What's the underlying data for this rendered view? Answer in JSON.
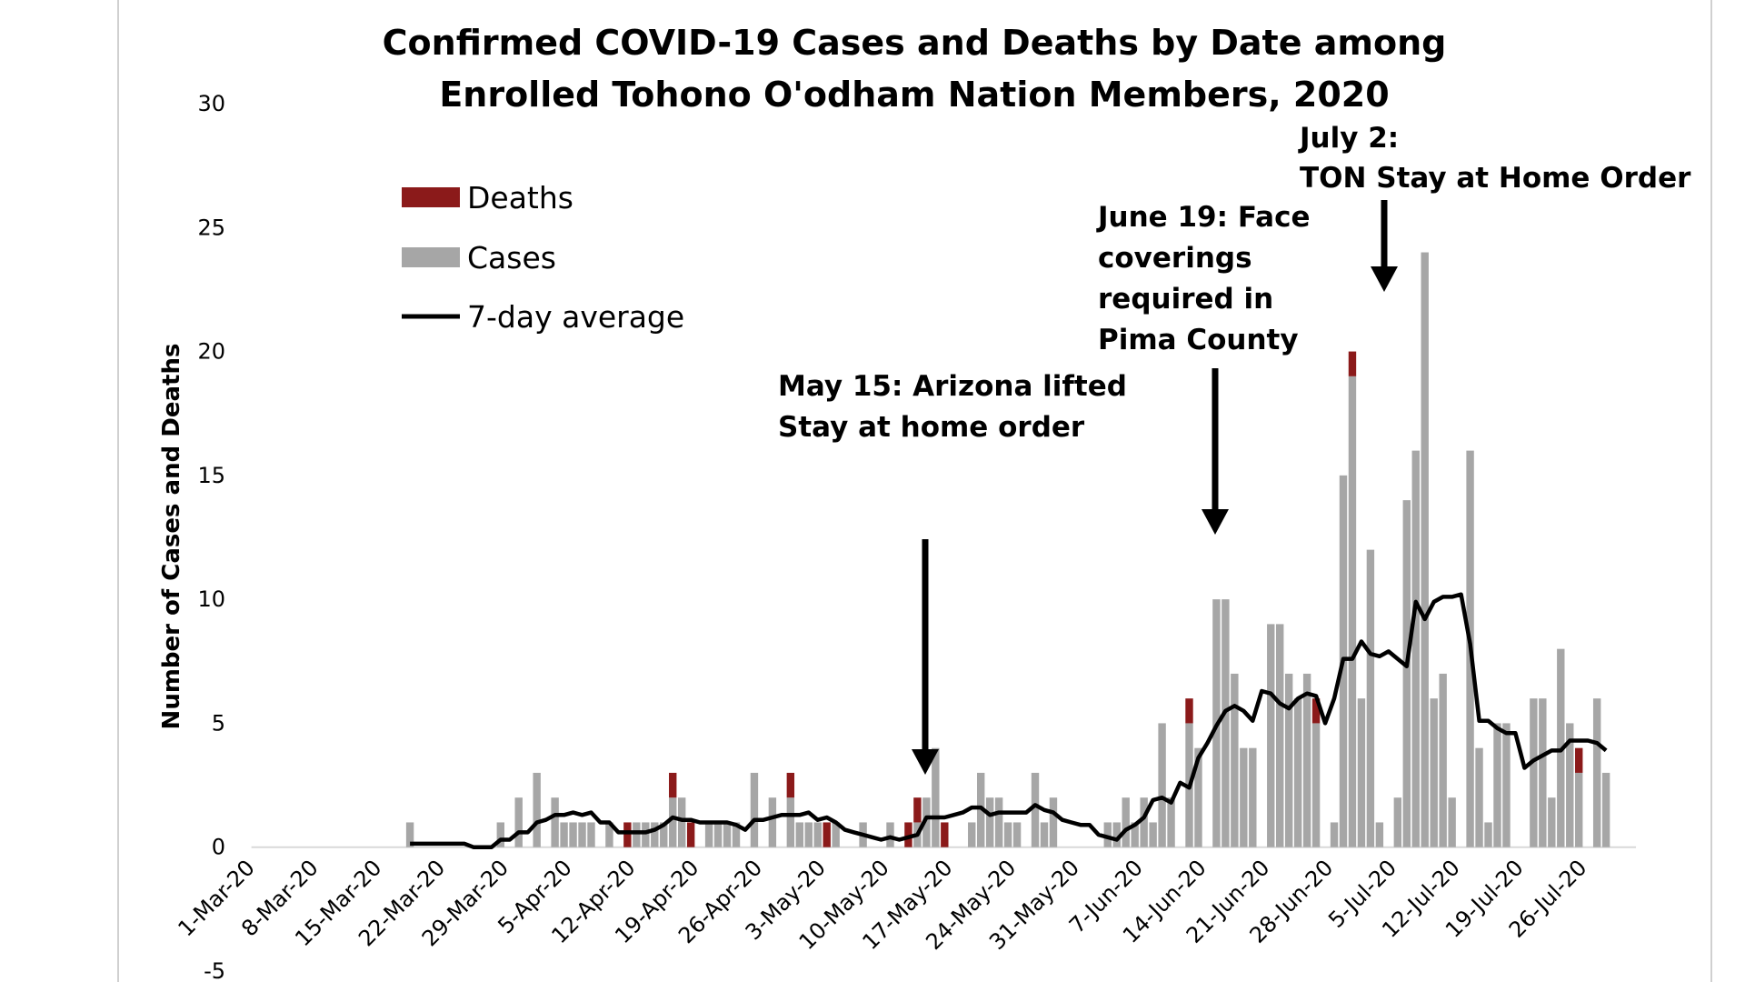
{
  "chart_data": {
    "type": "bar",
    "stacked": true,
    "title": [
      "Confirmed COVID-19 Cases and Deaths by Date among",
      "Enrolled Tohono O'odham Nation Members, 2020"
    ],
    "y_label": "Number of Cases and Deaths",
    "ylim": [
      -5,
      30
    ],
    "yticks": [
      -5,
      0,
      5,
      10,
      15,
      20,
      25,
      30
    ],
    "categories": [
      "1-Mar-20",
      null,
      null,
      null,
      null,
      null,
      null,
      "8-Mar-20",
      null,
      null,
      null,
      null,
      null,
      null,
      "15-Mar-20",
      null,
      null,
      null,
      null,
      null,
      null,
      "22-Mar-20",
      null,
      null,
      null,
      null,
      null,
      null,
      "29-Mar-20",
      null,
      null,
      null,
      null,
      null,
      null,
      "5-Apr-20",
      null,
      null,
      null,
      null,
      null,
      null,
      "12-Apr-20",
      null,
      null,
      null,
      null,
      null,
      null,
      "19-Apr-20",
      null,
      null,
      null,
      null,
      null,
      null,
      "26-Apr-20",
      null,
      null,
      null,
      null,
      null,
      null,
      "3-May-20",
      null,
      null,
      null,
      null,
      null,
      null,
      "10-May-20",
      null,
      null,
      null,
      null,
      null,
      null,
      "17-May-20",
      null,
      null,
      null,
      null,
      null,
      null,
      "24-May-20",
      null,
      null,
      null,
      null,
      null,
      null,
      "31-May-20",
      null,
      null,
      null,
      null,
      null,
      null,
      "7-Jun-20",
      null,
      null,
      null,
      null,
      null,
      null,
      "14-Jun-20",
      null,
      null,
      null,
      null,
      null,
      null,
      "21-Jun-20",
      null,
      null,
      null,
      null,
      null,
      null,
      "28-Jun-20",
      null,
      null,
      null,
      null,
      null,
      null,
      "5-Jul-20",
      null,
      null,
      null,
      null,
      null,
      null,
      "12-Jul-20",
      null,
      null,
      null,
      null,
      null,
      null,
      "19-Jul-20",
      null,
      null,
      null,
      null,
      null,
      null,
      "26-Jul-20",
      null,
      null,
      null,
      null
    ],
    "series": [
      {
        "name": "Deaths",
        "type": "bar",
        "color": "#8b1a1a",
        "values": [
          0,
          0,
          0,
          0,
          0,
          0,
          0,
          0,
          0,
          0,
          0,
          0,
          0,
          0,
          0,
          0,
          0,
          0,
          0,
          0,
          0,
          0,
          0,
          0,
          0,
          0,
          0,
          0,
          0,
          0,
          0,
          0,
          0,
          0,
          0,
          0,
          0,
          0,
          0,
          0,
          0,
          1,
          0,
          0,
          0,
          0,
          1,
          0,
          1,
          0,
          0,
          0,
          0,
          0,
          0,
          0,
          0,
          0,
          0,
          1,
          0,
          0,
          0,
          1,
          0,
          0,
          0,
          0,
          0,
          0,
          0,
          0,
          1,
          1,
          0,
          0,
          1,
          0,
          0,
          0,
          0,
          0,
          0,
          0,
          0,
          0,
          0,
          0,
          0,
          0,
          0,
          0,
          0,
          0,
          0,
          0,
          0,
          0,
          0,
          0,
          0,
          0,
          0,
          1,
          0,
          0,
          0,
          0,
          0,
          0,
          0,
          0,
          0,
          0,
          0,
          0,
          0,
          1,
          0,
          0,
          0,
          1,
          0,
          0,
          0,
          0,
          0,
          0,
          0,
          0,
          0,
          0,
          0,
          0,
          0,
          0,
          0,
          0,
          0,
          0,
          0,
          0,
          0,
          0,
          0,
          0,
          1,
          0,
          0,
          0,
          0,
          0
        ]
      },
      {
        "name": "Cases",
        "type": "bar",
        "color": "#a6a6a6",
        "values": [
          0,
          0,
          0,
          0,
          0,
          0,
          0,
          0,
          0,
          0,
          0,
          0,
          0,
          0,
          0,
          0,
          0,
          1,
          0,
          0,
          0,
          0,
          0,
          0,
          0,
          0,
          0,
          1,
          0,
          2,
          0,
          3,
          0,
          2,
          1,
          1,
          1,
          1,
          0,
          1,
          0,
          0,
          1,
          1,
          1,
          1,
          2,
          2,
          0,
          0,
          1,
          1,
          1,
          1,
          0,
          3,
          0,
          2,
          0,
          2,
          1,
          1,
          1,
          0,
          1,
          0,
          0,
          1,
          0,
          0,
          1,
          0,
          0,
          1,
          2,
          4,
          0,
          0,
          0,
          1,
          3,
          2,
          2,
          1,
          1,
          0,
          3,
          1,
          2,
          0,
          0,
          0,
          0,
          0,
          1,
          1,
          2,
          1,
          2,
          1,
          5,
          2,
          0,
          5,
          4,
          0,
          10,
          10,
          7,
          4,
          4,
          0,
          9,
          9,
          7,
          6,
          7,
          5,
          0,
          1,
          15,
          19,
          6,
          12,
          1,
          0,
          2,
          14,
          16,
          24,
          6,
          7,
          2,
          0,
          16,
          4,
          1,
          5,
          5,
          0,
          0,
          6,
          6,
          2,
          8,
          5,
          3,
          0,
          6,
          3,
          0,
          0
        ]
      },
      {
        "name": "7-day average",
        "type": "line",
        "color": "#000000",
        "values": [
          null,
          null,
          null,
          null,
          null,
          null,
          null,
          null,
          null,
          null,
          null,
          null,
          null,
          null,
          null,
          null,
          null,
          0.14,
          0.14,
          0.14,
          0.14,
          0.14,
          0.14,
          0.14,
          0,
          0,
          0,
          0.3,
          0.3,
          0.6,
          0.6,
          1,
          1.1,
          1.3,
          1.3,
          1.4,
          1.3,
          1.4,
          1,
          1,
          0.6,
          0.6,
          0.6,
          0.6,
          0.7,
          0.9,
          1.2,
          1.1,
          1.1,
          1,
          1,
          1,
          1,
          0.9,
          0.7,
          1.1,
          1.1,
          1.2,
          1.3,
          1.3,
          1.3,
          1.4,
          1.1,
          1.2,
          1,
          0.7,
          0.6,
          0.5,
          0.4,
          0.3,
          0.4,
          0.3,
          0.4,
          0.5,
          1.2,
          1.2,
          1.2,
          1.3,
          1.4,
          1.6,
          1.6,
          1.3,
          1.4,
          1.4,
          1.4,
          1.4,
          1.7,
          1.5,
          1.4,
          1.1,
          1,
          0.9,
          0.9,
          0.5,
          0.4,
          0.3,
          0.7,
          0.9,
          1.2,
          1.9,
          2,
          1.8,
          2.6,
          2.4,
          3.6,
          4.2,
          4.9,
          5.5,
          5.7,
          5.5,
          5.1,
          6.3,
          6.2,
          5.8,
          5.6,
          6,
          6.2,
          6.1,
          5,
          6,
          7.6,
          7.6,
          8.3,
          7.8,
          7.7,
          7.9,
          7.6,
          7.3,
          9.9,
          9.2,
          9.9,
          10.1,
          10.1,
          10.2,
          8.2,
          5.1,
          5.1,
          4.8,
          4.6,
          4.6,
          3.2,
          3.5,
          3.7,
          3.9,
          3.9,
          4.3,
          4.3,
          4.3,
          4.2,
          3.9,
          null,
          null
        ]
      }
    ],
    "annotations": [
      [
        "May 15: Arizona lifted",
        "Stay at home order"
      ],
      [
        "June 19: Face",
        "coverings",
        "required in",
        "Pima County"
      ],
      [
        "July 2:",
        "TON Stay at Home Order"
      ]
    ]
  }
}
